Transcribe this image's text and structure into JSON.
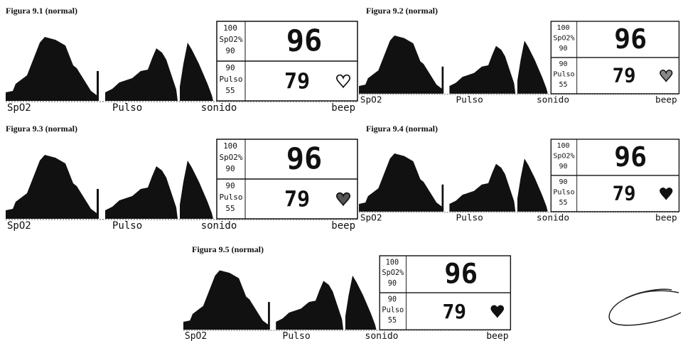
{
  "figures": [
    {
      "caption": "Figura 9.1 (normal)",
      "display": {
        "spo2_high": 100,
        "spo2_label": "SpO2%",
        "spo2_low": 90,
        "spo2_value": 96,
        "pulse_high": 90,
        "pulse_label": "Pulso",
        "pulse_low": 55,
        "pulse_value": 79,
        "footer": [
          "SpO2",
          "Pulso",
          "sonido",
          "beep"
        ]
      }
    },
    {
      "caption": "Figura 9.2 (normal)",
      "display": {
        "spo2_high": 100,
        "spo2_label": "SpO2%",
        "spo2_low": 90,
        "spo2_value": 96,
        "pulse_high": 90,
        "pulse_label": "Pulso",
        "pulse_low": 55,
        "pulse_value": 79,
        "footer": [
          "SpO2",
          "Pulso",
          "sonido",
          "beep"
        ]
      }
    },
    {
      "caption": "Figura 9.3 (normal)",
      "display": {
        "spo2_high": 100,
        "spo2_label": "SpO2%",
        "spo2_low": 90,
        "spo2_value": 96,
        "pulse_high": 90,
        "pulse_label": "Pulso",
        "pulse_low": 55,
        "pulse_value": 79,
        "footer": [
          "SpO2",
          "Pulso",
          "sonido",
          "beep"
        ]
      }
    },
    {
      "caption": "Figura 9.4 (normal)",
      "display": {
        "spo2_high": 100,
        "spo2_label": "SpO2%",
        "spo2_low": 90,
        "spo2_value": 96,
        "pulse_high": 90,
        "pulse_label": "Pulso",
        "pulse_low": 55,
        "pulse_value": 79,
        "footer": [
          "SpO2",
          "Pulso",
          "sonido",
          "beep"
        ]
      }
    },
    {
      "caption": "Figura 9.5 (normal)",
      "display": {
        "spo2_high": 100,
        "spo2_label": "SpO2%",
        "spo2_low": 90,
        "spo2_value": 96,
        "pulse_high": 90,
        "pulse_label": "Pulso",
        "pulse_low": 55,
        "pulse_value": 79,
        "footer": [
          "SpO2",
          "Pulso",
          "sonido",
          "beep"
        ]
      }
    }
  ]
}
